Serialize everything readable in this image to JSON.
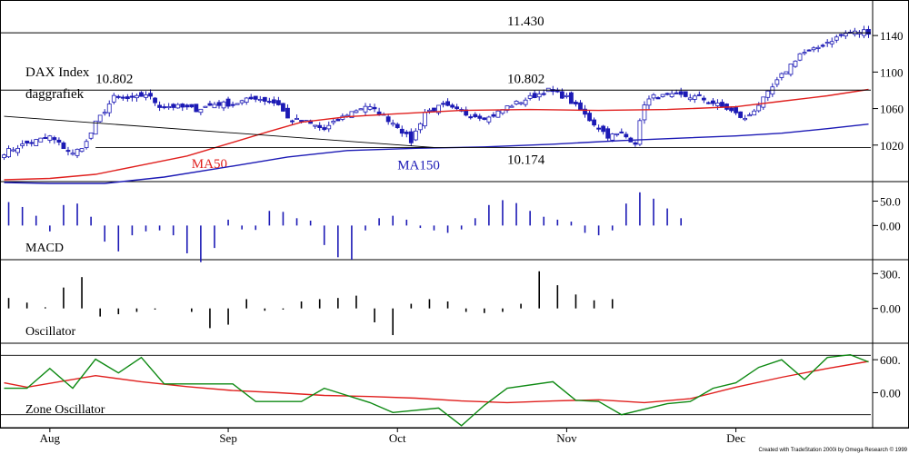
{
  "chart_data": {
    "type": "candlestick",
    "title": "DAX Index",
    "subtitle": "daggrafiek",
    "x_labels": [
      "Aug",
      "Sep",
      "Oct",
      "Nov",
      "Dec"
    ],
    "x_label_positions": [
      10,
      49,
      86,
      123,
      160
    ],
    "n_days": 190,
    "price_axis": {
      "ticks": [
        "1140",
        "1100",
        "1060",
        "1020"
      ],
      "tick_values": [
        11400,
        11000,
        10600,
        10200
      ],
      "range": [
        9800,
        11650
      ]
    },
    "levels": [
      {
        "label": "11.430",
        "value": 11430
      },
      {
        "label": "10.802",
        "value": 10802
      },
      {
        "label": "10.174",
        "value": 10174
      }
    ],
    "level_labels": [
      {
        "text": "11.430",
        "day": 110,
        "value": 11430
      },
      {
        "text": "10.802",
        "day": 20,
        "value": 10802
      },
      {
        "text": "10.802",
        "day": 110,
        "value": 10802
      },
      {
        "text": "10.174",
        "day": 110,
        "value": 10174
      }
    ],
    "trendline": {
      "from": {
        "day": 0,
        "value": 10515
      },
      "to": {
        "day": 94,
        "value": 10174
      }
    },
    "moving_averages": [
      {
        "name": "MA50",
        "color": "#e0201e",
        "label_day": 41,
        "label_value": 9950,
        "points": [
          [
            0,
            9820
          ],
          [
            10,
            9835
          ],
          [
            20,
            9880
          ],
          [
            30,
            9980
          ],
          [
            40,
            10080
          ],
          [
            50,
            10230
          ],
          [
            58,
            10350
          ],
          [
            65,
            10450
          ],
          [
            75,
            10510
          ],
          [
            85,
            10540
          ],
          [
            100,
            10580
          ],
          [
            115,
            10590
          ],
          [
            130,
            10580
          ],
          [
            145,
            10590
          ],
          [
            160,
            10620
          ],
          [
            170,
            10680
          ],
          [
            180,
            10740
          ],
          [
            189,
            10810
          ]
        ]
      },
      {
        "name": "MA150",
        "color": "#1c1ab5",
        "label_day": 86,
        "label_value": 9935,
        "points": [
          [
            0,
            9790
          ],
          [
            10,
            9780
          ],
          [
            22,
            9780
          ],
          [
            35,
            9850
          ],
          [
            50,
            9970
          ],
          [
            62,
            10070
          ],
          [
            75,
            10140
          ],
          [
            90,
            10165
          ],
          [
            105,
            10180
          ],
          [
            120,
            10210
          ],
          [
            135,
            10250
          ],
          [
            150,
            10280
          ],
          [
            160,
            10300
          ],
          [
            170,
            10330
          ],
          [
            180,
            10380
          ],
          [
            189,
            10430
          ]
        ]
      }
    ],
    "macd": {
      "label": "MACD",
      "axis": {
        "ticks": [
          "50.0",
          "0.00"
        ],
        "tick_values": [
          50,
          0
        ],
        "range": [
          -70,
          90
        ]
      },
      "step": 3,
      "values": [
        48,
        38,
        20,
        -12,
        42,
        45,
        18,
        -33,
        -53,
        -20,
        -12,
        -10,
        -20,
        -57,
        -75,
        -46,
        12,
        -8,
        -9,
        30,
        28,
        15,
        10,
        -40,
        -65,
        -70,
        -10,
        15,
        20,
        12,
        -5,
        -10,
        -15,
        -8,
        15,
        42,
        52,
        46,
        30,
        18,
        12,
        8,
        -15,
        -20,
        -10,
        45,
        68,
        55,
        35,
        15
      ]
    },
    "oscillator": {
      "label": "Oscillator",
      "axis": {
        "ticks": [
          "300.",
          "0.00"
        ],
        "tick_values": [
          300,
          0
        ],
        "range": [
          -300,
          420
        ]
      },
      "step": 4,
      "values": [
        90,
        50,
        10,
        180,
        270,
        -70,
        -50,
        -30,
        -10,
        0,
        -30,
        -170,
        -140,
        80,
        -20,
        -10,
        60,
        80,
        90,
        110,
        -120,
        -230,
        40,
        80,
        60,
        -30,
        -40,
        -30,
        40,
        320,
        200,
        120,
        70,
        80
      ]
    },
    "zone_oscillator": {
      "label": "Zone Oscillator",
      "axis": {
        "ticks": [
          "600.",
          "0.00"
        ],
        "tick_values": [
          600,
          0
        ],
        "range": [
          -620,
          900
        ]
      },
      "bands": [
        680,
        -400
      ],
      "fast": {
        "color": "#0f8a14",
        "points": [
          [
            0,
            80
          ],
          [
            5,
            80
          ],
          [
            10,
            440
          ],
          [
            15,
            80
          ],
          [
            20,
            610
          ],
          [
            25,
            360
          ],
          [
            30,
            640
          ],
          [
            35,
            160
          ],
          [
            50,
            160
          ],
          [
            55,
            -160
          ],
          [
            65,
            -160
          ],
          [
            70,
            80
          ],
          [
            80,
            -180
          ],
          [
            85,
            -360
          ],
          [
            95,
            -280
          ],
          [
            100,
            -600
          ],
          [
            105,
            -230
          ],
          [
            110,
            80
          ],
          [
            120,
            200
          ],
          [
            125,
            -140
          ],
          [
            130,
            -160
          ],
          [
            135,
            -400
          ],
          [
            145,
            -200
          ],
          [
            150,
            -160
          ],
          [
            155,
            80
          ],
          [
            160,
            180
          ],
          [
            165,
            460
          ],
          [
            170,
            600
          ],
          [
            175,
            240
          ],
          [
            180,
            640
          ],
          [
            185,
            690
          ],
          [
            189,
            560
          ]
        ]
      },
      "slow": {
        "color": "#e0201e",
        "points": [
          [
            0,
            180
          ],
          [
            5,
            100
          ],
          [
            10,
            170
          ],
          [
            20,
            310
          ],
          [
            30,
            200
          ],
          [
            40,
            110
          ],
          [
            50,
            40
          ],
          [
            60,
            0
          ],
          [
            70,
            -50
          ],
          [
            80,
            -70
          ],
          [
            90,
            -100
          ],
          [
            100,
            -150
          ],
          [
            110,
            -180
          ],
          [
            120,
            -150
          ],
          [
            130,
            -130
          ],
          [
            140,
            -180
          ],
          [
            150,
            -110
          ],
          [
            160,
            100
          ],
          [
            170,
            280
          ],
          [
            180,
            440
          ],
          [
            189,
            570
          ]
        ]
      }
    }
  },
  "footer": {
    "credit": "Created with TradeStation 2000i by Omega Research © 1999"
  }
}
